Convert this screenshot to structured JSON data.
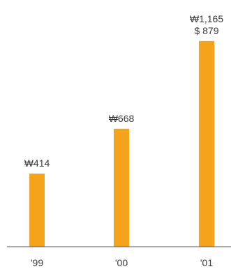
{
  "chart_data": {
    "type": "bar",
    "categories": [
      "'99",
      "'00",
      "'01"
    ],
    "values": [
      414,
      668,
      1165
    ],
    "value_labels": [
      [
        "₩414"
      ],
      [
        "₩668"
      ],
      [
        "₩1,165",
        "$ 879"
      ]
    ],
    "bar_color": "#F5A31A",
    "axis_color": "#555555",
    "title": "",
    "xlabel": "",
    "ylabel": "",
    "ylim": [
      0,
      1200
    ],
    "grid": false,
    "legend": "none"
  }
}
